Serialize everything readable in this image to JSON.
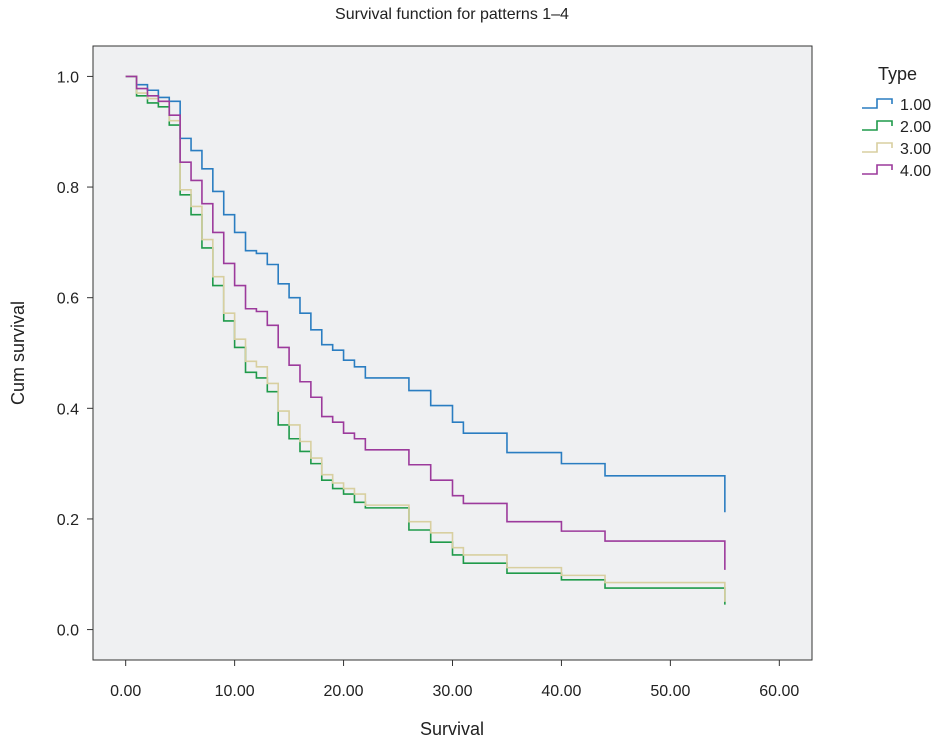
{
  "chart_data": {
    "type": "line",
    "step": true,
    "title": "Survival function for patterns 1–4",
    "xlabel": "Survival",
    "ylabel": "Cum survival",
    "xlim": [
      -3,
      63
    ],
    "ylim": [
      -0.055,
      1.055
    ],
    "x_ticks": [
      0,
      10,
      20,
      30,
      40,
      50,
      60
    ],
    "x_tick_labels": [
      "0.00",
      "10.00",
      "20.00",
      "30.00",
      "40.00",
      "50.00",
      "60.00"
    ],
    "y_ticks": [
      0.0,
      0.2,
      0.4,
      0.6,
      0.8,
      1.0
    ],
    "y_tick_labels": [
      "0.0",
      "0.2",
      "0.4",
      "0.6",
      "0.8",
      "1.0"
    ],
    "grid": false,
    "legend": {
      "title": "Type",
      "position": "right"
    },
    "colors": {
      "plot_background": "#eff0f2",
      "axis": "#333333"
    },
    "series": [
      {
        "name": "1.00",
        "color": "#2a7dc1",
        "x": [
          0,
          1,
          2,
          3,
          4,
          5,
          6,
          7,
          8,
          9,
          10,
          11,
          12,
          13,
          14,
          15,
          16,
          17,
          18,
          19,
          20,
          21,
          22,
          26,
          28,
          30,
          31,
          35,
          40,
          44,
          55,
          55
        ],
        "y": [
          1.0,
          0.985,
          0.975,
          0.962,
          0.955,
          0.888,
          0.866,
          0.833,
          0.792,
          0.75,
          0.718,
          0.685,
          0.68,
          0.66,
          0.625,
          0.6,
          0.572,
          0.542,
          0.515,
          0.505,
          0.487,
          0.475,
          0.455,
          0.432,
          0.405,
          0.375,
          0.355,
          0.32,
          0.3,
          0.278,
          0.256,
          0.212
        ]
      },
      {
        "name": "2.00",
        "color": "#1f9a4a",
        "x": [
          0,
          1,
          2,
          3,
          4,
          5,
          6,
          7,
          8,
          9,
          10,
          11,
          12,
          13,
          14,
          15,
          16,
          17,
          18,
          19,
          20,
          21,
          22,
          26,
          28,
          30,
          31,
          35,
          40,
          44,
          55,
          55
        ],
        "y": [
          1.0,
          0.965,
          0.952,
          0.945,
          0.912,
          0.786,
          0.75,
          0.69,
          0.622,
          0.558,
          0.51,
          0.465,
          0.455,
          0.43,
          0.37,
          0.345,
          0.322,
          0.3,
          0.27,
          0.255,
          0.245,
          0.23,
          0.22,
          0.18,
          0.158,
          0.135,
          0.12,
          0.102,
          0.09,
          0.075,
          0.062,
          0.045
        ]
      },
      {
        "name": "3.00",
        "color": "#d8cfa0",
        "x": [
          0,
          1,
          2,
          3,
          4,
          5,
          6,
          7,
          8,
          9,
          10,
          11,
          12,
          13,
          14,
          15,
          16,
          17,
          18,
          19,
          20,
          21,
          22,
          26,
          28,
          30,
          31,
          35,
          40,
          44,
          55,
          55
        ],
        "y": [
          1.0,
          0.97,
          0.96,
          0.955,
          0.92,
          0.795,
          0.765,
          0.705,
          0.638,
          0.572,
          0.525,
          0.485,
          0.475,
          0.445,
          0.395,
          0.37,
          0.34,
          0.31,
          0.28,
          0.265,
          0.255,
          0.245,
          0.225,
          0.195,
          0.175,
          0.148,
          0.135,
          0.112,
          0.098,
          0.085,
          0.068,
          0.05
        ]
      },
      {
        "name": "4.00",
        "color": "#9c3a9c",
        "x": [
          0,
          1,
          2,
          3,
          4,
          5,
          6,
          7,
          8,
          9,
          10,
          11,
          12,
          13,
          14,
          15,
          16,
          17,
          18,
          19,
          20,
          21,
          22,
          26,
          28,
          30,
          31,
          35,
          40,
          44,
          55,
          55
        ],
        "y": [
          1.0,
          0.978,
          0.965,
          0.955,
          0.93,
          0.845,
          0.812,
          0.77,
          0.718,
          0.662,
          0.622,
          0.58,
          0.575,
          0.55,
          0.51,
          0.478,
          0.448,
          0.42,
          0.385,
          0.375,
          0.355,
          0.345,
          0.325,
          0.298,
          0.27,
          0.242,
          0.228,
          0.195,
          0.178,
          0.16,
          0.14,
          0.108
        ]
      }
    ]
  }
}
